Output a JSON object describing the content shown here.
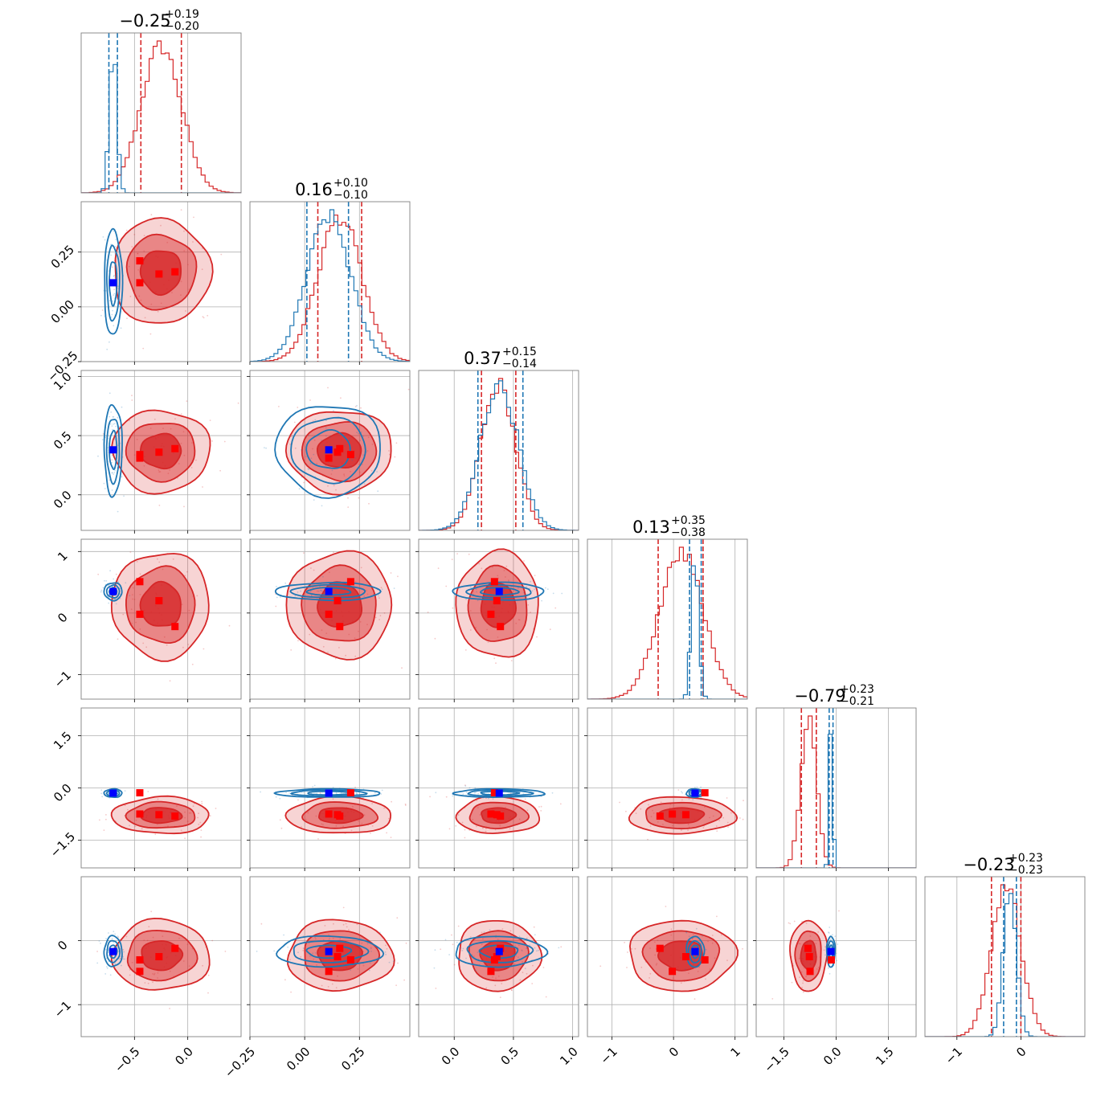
{
  "colors": {
    "samples_a": "#d62728",
    "samples_b": "#1f77b4",
    "truth_marker": "#0000ff",
    "point_marker": "#ff0000",
    "grid": "#b0b0b0",
    "axes": "#808080"
  },
  "chart_data": {
    "type": "corner-plot",
    "n_parameters": 6,
    "grid": true,
    "titles": [
      {
        "main": "−0.25",
        "up": "+0.19",
        "down": "−0.20"
      },
      {
        "main": "0.16",
        "up": "+0.10",
        "down": "−0.10"
      },
      {
        "main": "0.37",
        "up": "+0.15",
        "down": "−0.14"
      },
      {
        "main": "0.13",
        "up": "+0.35",
        "down": "−0.38"
      },
      {
        "main": "−0.79",
        "up": "+0.23",
        "down": "−0.21"
      },
      {
        "main": "−0.23",
        "up": "+0.23",
        "down": "−0.23"
      }
    ],
    "ranges": [
      [
        -1.0,
        0.5
      ],
      [
        -0.25,
        0.48
      ],
      [
        -0.3,
        1.05
      ],
      [
        -1.4,
        1.2
      ],
      [
        -2.3,
        2.3
      ],
      [
        -1.5,
        1.0
      ]
    ],
    "x_ticks": [
      {
        "values": [
          -0.5,
          0.0
        ],
        "labels": [
          "−0.5",
          "0.0"
        ]
      },
      {
        "values": [
          -0.25,
          0.0,
          0.25
        ],
        "labels": [
          "−0.25",
          "0.00",
          "0.25"
        ]
      },
      {
        "values": [
          0.0,
          0.5,
          1.0
        ],
        "labels": [
          "0.0",
          "0.5",
          "1.0"
        ]
      },
      {
        "values": [
          -1,
          0,
          1
        ],
        "labels": [
          "−1",
          "0",
          "1"
        ]
      },
      {
        "values": [
          -1.5,
          0.0,
          1.5
        ],
        "labels": [
          "−1.5",
          "0.0",
          "1.5"
        ]
      },
      {
        "values": [
          -1,
          0
        ],
        "labels": [
          "−1",
          "0"
        ]
      }
    ],
    "y_ticks": [
      null,
      {
        "values": [
          -0.25,
          0.0,
          0.25
        ],
        "labels": [
          "−0.25",
          "0.00",
          "0.25"
        ]
      },
      {
        "values": [
          0.0,
          0.5,
          1.0
        ],
        "labels": [
          "0.0",
          "0.5",
          "1.0"
        ]
      },
      {
        "values": [
          -1,
          0,
          1
        ],
        "labels": [
          "−1",
          "0",
          "1"
        ]
      },
      {
        "values": [
          -1.5,
          0.0,
          1.5
        ],
        "labels": [
          "−1.5",
          "0.0",
          "1.5"
        ]
      },
      {
        "values": [
          -1,
          0
        ],
        "labels": [
          "−1",
          "0"
        ]
      }
    ],
    "series": [
      {
        "color_key": "samples_a",
        "means": [
          -0.25,
          0.16,
          0.37,
          0.13,
          -0.79,
          -0.23
        ],
        "sigmas": [
          0.19,
          0.1,
          0.145,
          0.36,
          0.22,
          0.23
        ],
        "quantiles": [
          [
            -0.44,
            -0.06
          ],
          [
            0.06,
            0.26
          ],
          [
            0.23,
            0.52
          ],
          [
            -0.25,
            0.48
          ],
          [
            -1.0,
            -0.57
          ],
          [
            -0.46,
            0.0
          ]
        ],
        "filled": true
      },
      {
        "color_key": "samples_b",
        "means": [
          -0.7,
          0.11,
          0.38,
          0.35,
          -0.15,
          -0.17
        ],
        "sigmas": [
          0.035,
          0.1,
          0.16,
          0.06,
          0.05,
          0.1
        ],
        "quantiles": [
          [
            -0.74,
            -0.66
          ],
          [
            0.01,
            0.2
          ],
          [
            0.2,
            0.58
          ],
          [
            0.26,
            0.45
          ],
          [
            -0.2,
            -0.09
          ],
          [
            -0.27,
            -0.07
          ]
        ],
        "filled": false
      }
    ],
    "truth_point": [
      -0.7,
      0.11,
      0.38,
      0.35,
      -0.15,
      -0.17
    ],
    "red_points": [
      [
        -0.45,
        0.21,
        0.34,
        0.51,
        -0.14,
        -0.3
      ],
      [
        -0.45,
        0.11,
        0.31,
        -0.02,
        -0.75,
        -0.48
      ],
      [
        -0.27,
        0.15,
        0.36,
        0.2,
        -0.77,
        -0.25
      ],
      [
        -0.12,
        0.16,
        0.39,
        -0.22,
        -0.81,
        -0.12
      ]
    ]
  }
}
